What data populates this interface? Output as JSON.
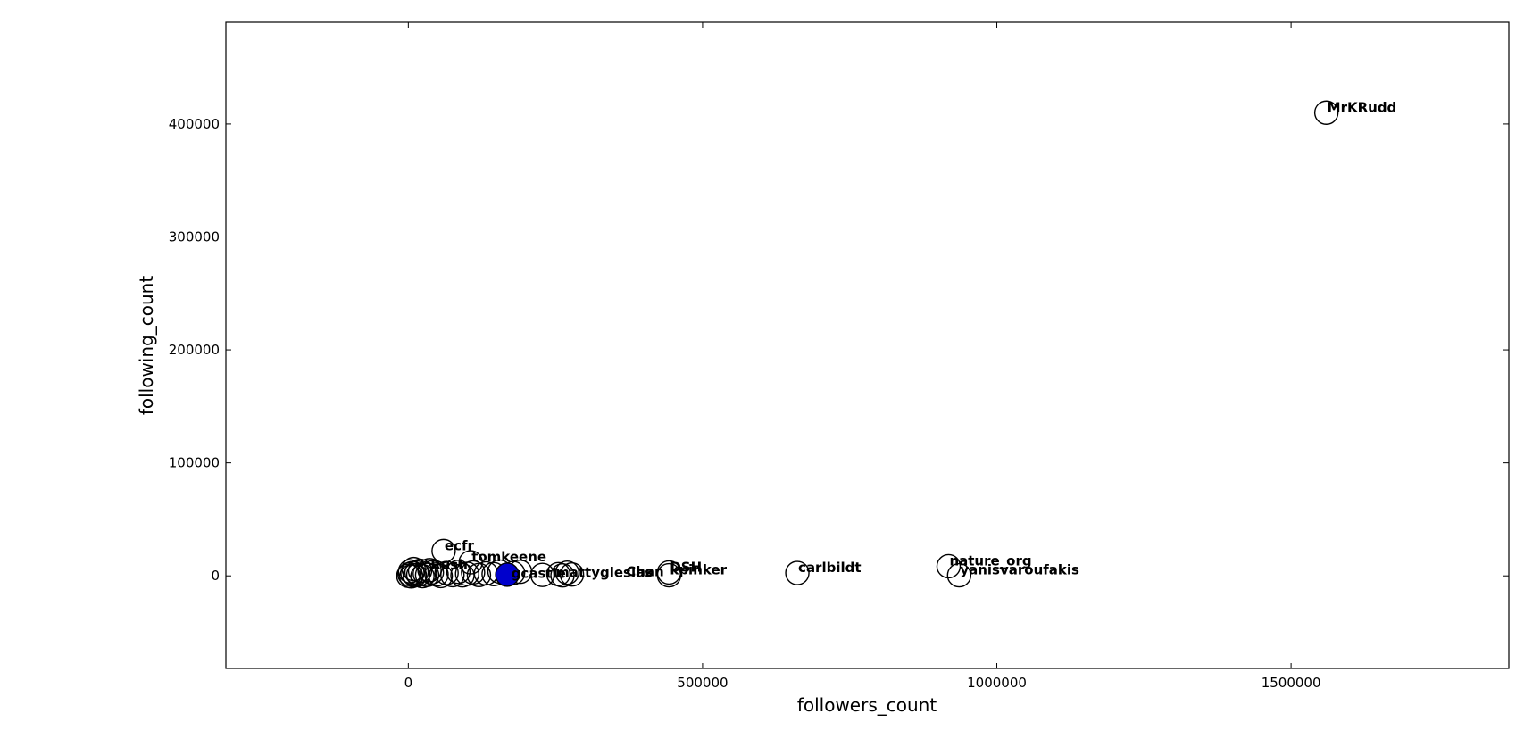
{
  "chart_data": {
    "type": "scatter",
    "title": "",
    "xlabel": "followers_count",
    "ylabel": "following_count",
    "xlim": [
      -310000,
      1870000
    ],
    "ylim": [
      -82000,
      490000
    ],
    "xticks": [
      0,
      500000,
      1000000,
      1500000
    ],
    "yticks": [
      0,
      100000,
      200000,
      300000,
      400000
    ],
    "xtick_labels": [
      "0",
      "500000",
      "1000000",
      "1500000"
    ],
    "ytick_labels": [
      "0",
      "100000",
      "200000",
      "300000",
      "400000"
    ],
    "grid": false,
    "marker": "open-circle",
    "marker_color": "#000000",
    "highlight_color": "#0000cc",
    "labeled_points": [
      {
        "label": "MrKRudd",
        "x": 1560000,
        "y": 410000
      },
      {
        "label": "nature_org",
        "x": 918000,
        "y": 8500
      },
      {
        "label": "yanisvaroufakis",
        "x": 936000,
        "y": 500
      },
      {
        "label": "carlbildt",
        "x": 661000,
        "y": 2500
      },
      {
        "label": "ecfr",
        "x": 60000,
        "y": 22000
      },
      {
        "label": "tomkeene",
        "x": 106000,
        "y": 12000
      },
      {
        "label": "DSH",
        "x": 443000,
        "y": 3000
      },
      {
        "label": "kpinker",
        "x": 443000,
        "y": 500
      },
      {
        "label": "Rush",
        "x": 36000,
        "y": 5000
      }
    ],
    "highlighted_points": [
      {
        "x": 168000,
        "y": 1000
      }
    ],
    "unlabeled_points": [
      {
        "x": 0,
        "y": 0
      },
      {
        "x": 2000,
        "y": 1500
      },
      {
        "x": 3000,
        "y": 4000
      },
      {
        "x": 5000,
        "y": -500
      },
      {
        "x": 7000,
        "y": 2500
      },
      {
        "x": 9000,
        "y": 6000
      },
      {
        "x": 11000,
        "y": 500
      },
      {
        "x": 14000,
        "y": 3000
      },
      {
        "x": 17000,
        "y": 1000
      },
      {
        "x": 20000,
        "y": 4500
      },
      {
        "x": 24000,
        "y": -300
      },
      {
        "x": 28000,
        "y": 2000
      },
      {
        "x": 32000,
        "y": 800
      },
      {
        "x": 40000,
        "y": 3000
      },
      {
        "x": 48000,
        "y": 1200
      },
      {
        "x": 55000,
        "y": -200
      },
      {
        "x": 65000,
        "y": 2500
      },
      {
        "x": 75000,
        "y": 600
      },
      {
        "x": 85000,
        "y": 3500
      },
      {
        "x": 92000,
        "y": 400
      },
      {
        "x": 100000,
        "y": 1800
      },
      {
        "x": 110000,
        "y": 3000
      },
      {
        "x": 120000,
        "y": 700
      },
      {
        "x": 132000,
        "y": 2200
      },
      {
        "x": 145000,
        "y": 1500
      },
      {
        "x": 155000,
        "y": 3800
      },
      {
        "x": 178000,
        "y": 2500
      },
      {
        "x": 190000,
        "y": 3600
      },
      {
        "x": 228000,
        "y": 800
      },
      {
        "x": 255000,
        "y": 1500
      },
      {
        "x": 262000,
        "y": 400
      },
      {
        "x": 270000,
        "y": 2800
      },
      {
        "x": 278000,
        "y": 1200
      }
    ],
    "label_overlap_fragments": [
      {
        "text": "gcastle",
        "x": 175000,
        "y": 1500
      },
      {
        "text": "mattyglesias",
        "x": 250000,
        "y": 2000
      },
      {
        "text": "Chan",
        "x": 370000,
        "y": 2800
      }
    ]
  }
}
